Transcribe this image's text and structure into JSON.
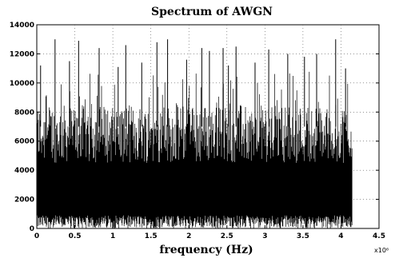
{
  "chart_data": {
    "type": "line",
    "title": "Spectrum of AWGN",
    "xlabel": "frequency (Hz)",
    "ylabel": "",
    "x_multiplier_label": "x10⁶",
    "xlim": [
      0,
      4.5
    ],
    "ylim": [
      0,
      14000
    ],
    "xticks": [
      "0",
      "0.5",
      "1",
      "1.5",
      "2",
      "2.5",
      "3",
      "3.5",
      "4",
      "4.5"
    ],
    "yticks": [
      "0",
      "2000",
      "4000",
      "6000",
      "8000",
      "10000",
      "12000",
      "14000"
    ],
    "grid": "dotted",
    "data_x_range": [
      0,
      4.15
    ],
    "series": [
      {
        "description_values_only": true,
        "x": [
          0.05,
          0.24,
          0.43,
          0.55,
          0.82,
          1.07,
          1.17,
          1.38,
          1.58,
          1.72,
          1.97,
          2.17,
          2.27,
          2.45,
          2.52,
          2.62,
          2.87,
          3.05,
          3.3,
          3.52,
          3.68,
          3.93,
          4.06
        ],
        "values": [
          11200,
          13000,
          11500,
          12900,
          12400,
          11100,
          12600,
          11400,
          12800,
          13000,
          11600,
          12400,
          12200,
          12400,
          11200,
          12500,
          11400,
          12300,
          12000,
          11800,
          12000,
          13000,
          11000
        ]
      }
    ],
    "noise_band": {
      "dense_min": 0,
      "dense_max": 8500,
      "color": "#000000"
    }
  }
}
